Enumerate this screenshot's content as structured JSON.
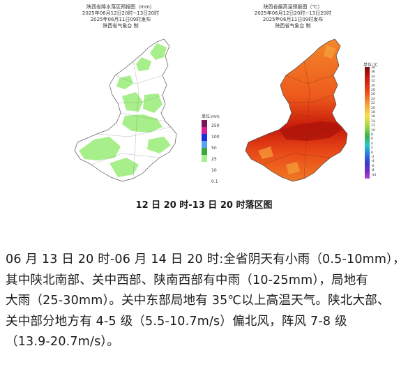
{
  "left_map": {
    "title_lines": [
      "陕西省降水落区预报图（mm）",
      "2025年06月12日20时~13日20时",
      "2025年06月11日09时发布",
      "陕西省气象台 制"
    ],
    "legend_title": "单位:mm",
    "legend": [
      {
        "label": "250",
        "color": "#7a1457"
      },
      {
        "label": "100",
        "color": "#d61e96"
      },
      {
        "label": "50",
        "color": "#1b2fe0"
      },
      {
        "label": "25",
        "color": "#53a5f0"
      },
      {
        "label": "10",
        "color": "#3aa83a"
      },
      {
        "label": "0.1",
        "color": "#a6ef8a"
      }
    ]
  },
  "right_map": {
    "title_lines": [
      "陕西省最高温预报图（℃）",
      "2025年06月12日20时~13日20时",
      "2025年06月11日09时发布",
      "陕西省气象台 制"
    ],
    "legend_title": "单位:℃",
    "scale_labels": [
      "38",
      "36",
      "34",
      "32",
      "30",
      "28",
      "26",
      "24",
      "22",
      "20",
      "18",
      "16",
      "14",
      "12",
      "10",
      "8",
      "6",
      "4",
      "2",
      "0",
      "-2",
      "-4",
      "-6",
      "-8",
      "-10"
    ]
  },
  "caption": "12 日 20 时-13 日 20 时落区图",
  "paragraph_lines": [
    "06 月 13 日 20 时-06 月 14 日 20 时:全省阴天有小雨（0.5-10mm），",
    "其中陕北南部、关中西部、陕南西部有中雨（10-25mm），局地有",
    "大雨（25-30mm）。关中东部局地有 35℃以上高温天气。陕北大部、",
    "关中部分地方有 4-5 级（5.5-10.7m/s）偏北风，阵风 7-8 级",
    "（13.9-20.7m/s）。"
  ],
  "colors": {
    "rain_light": "#a6ef8a",
    "rain_mid": "#3aa83a",
    "temp_hot": "#c81a0a",
    "temp_warm": "#ef5a1a",
    "temp_mild": "#f7a23a"
  }
}
